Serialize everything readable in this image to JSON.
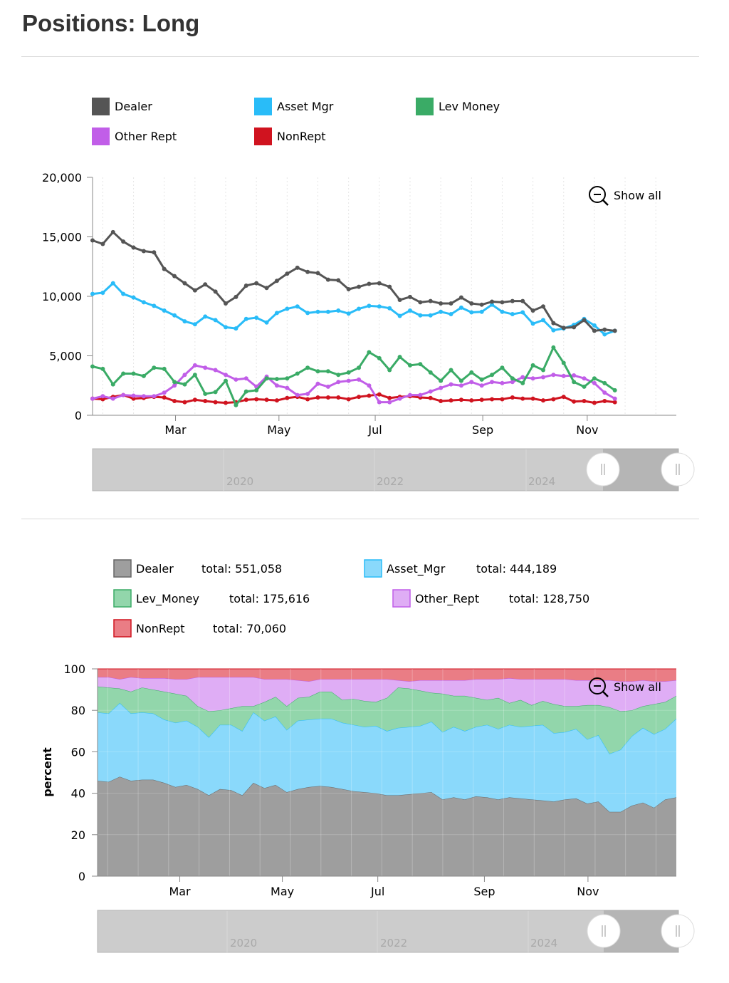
{
  "page": {
    "title": "Positions: Long"
  },
  "colors": {
    "Dealer": "#555555",
    "Asset_Mgr": "#29bcf8",
    "Lev_Money": "#3aab66",
    "Other_Rept": "#c15ee8",
    "NonRept": "#d0131f"
  },
  "chart_data": [
    {
      "type": "line",
      "title": "",
      "xlabel": "",
      "ylabel": "",
      "ylim": [
        0,
        20000
      ],
      "yticks": [
        0,
        5000,
        10000,
        15000,
        20000
      ],
      "ytick_labels": [
        "0",
        "5,000",
        "10,000",
        "15,000",
        "20,000"
      ],
      "x_axis_labels": [
        "Mar",
        "May",
        "Jul",
        "Sep",
        "Nov"
      ],
      "x_label_weeks": [
        8.1,
        18.2,
        27.6,
        38.1,
        48.3
      ],
      "n_weeks": 58,
      "zoom_label": "Show all",
      "navigator_labels": [
        "2020",
        "2022",
        "2024"
      ],
      "legend": [
        "Dealer",
        "Asset Mgr",
        "Lev Money",
        "Other Rept",
        "NonRept"
      ],
      "series": [
        {
          "name": "Dealer",
          "color": "#555555",
          "values": [
            14700,
            14400,
            15400,
            14600,
            14100,
            13800,
            13700,
            12300,
            11700,
            11100,
            10500,
            11000,
            10400,
            9400,
            9950,
            10900,
            11100,
            10700,
            11300,
            11900,
            12400,
            12050,
            11950,
            11400,
            11350,
            10600,
            10800,
            11050,
            11100,
            10800,
            9700,
            9950,
            9500,
            9600,
            9400,
            9400,
            9900,
            9400,
            9300,
            9550,
            9500,
            9600,
            9600,
            8800,
            9150,
            7750,
            7350,
            7400,
            8000,
            7100,
            7200,
            7100
          ]
        },
        {
          "name": "Asset Mgr",
          "color": "#29bcf8",
          "values": [
            10200,
            10300,
            11100,
            10200,
            9900,
            9500,
            9200,
            8800,
            8400,
            7900,
            7650,
            8300,
            8000,
            7400,
            7300,
            8100,
            8200,
            7800,
            8600,
            8950,
            9150,
            8600,
            8700,
            8700,
            8800,
            8550,
            8950,
            9200,
            9150,
            9000,
            8350,
            8800,
            8400,
            8400,
            8700,
            8500,
            9050,
            8650,
            8700,
            9300,
            8700,
            8500,
            8650,
            7700,
            8000,
            7150,
            7300,
            7600,
            8100,
            7550,
            6800,
            7100
          ]
        },
        {
          "name": "Lev Money",
          "color": "#3aab66",
          "values": [
            4100,
            3900,
            2600,
            3500,
            3500,
            3300,
            4000,
            3900,
            2800,
            2600,
            3400,
            1800,
            1950,
            2900,
            850,
            2000,
            2100,
            3100,
            3050,
            3100,
            3500,
            4000,
            3700,
            3700,
            3400,
            3600,
            4000,
            5300,
            4800,
            3800,
            4900,
            4200,
            4300,
            3600,
            2900,
            3800,
            2900,
            3600,
            3000,
            3400,
            4000,
            3100,
            2700,
            4200,
            3800,
            5700,
            4400,
            2800,
            2400,
            3100,
            2700,
            2100
          ]
        },
        {
          "name": "Other Rept",
          "color": "#c15ee8",
          "values": [
            1400,
            1600,
            1400,
            1700,
            1650,
            1600,
            1600,
            1900,
            2500,
            3400,
            4200,
            4000,
            3800,
            3400,
            3000,
            3100,
            2400,
            3250,
            2500,
            2300,
            1700,
            1800,
            2650,
            2400,
            2800,
            2900,
            3000,
            2500,
            1100,
            1100,
            1400,
            1700,
            1700,
            2000,
            2300,
            2600,
            2500,
            2800,
            2500,
            2800,
            2700,
            2800,
            3200,
            3100,
            3200,
            3400,
            3300,
            3350,
            3100,
            2700,
            1900,
            1400
          ]
        },
        {
          "name": "NonRept",
          "color": "#d0131f",
          "values": [
            1400,
            1350,
            1550,
            1700,
            1400,
            1450,
            1550,
            1500,
            1200,
            1100,
            1300,
            1200,
            1100,
            1050,
            1100,
            1300,
            1350,
            1300,
            1250,
            1450,
            1550,
            1350,
            1500,
            1500,
            1500,
            1350,
            1550,
            1650,
            1750,
            1450,
            1550,
            1600,
            1500,
            1450,
            1200,
            1250,
            1300,
            1250,
            1300,
            1350,
            1350,
            1500,
            1400,
            1400,
            1250,
            1350,
            1550,
            1150,
            1200,
            1050,
            1200,
            1100
          ]
        }
      ]
    },
    {
      "type": "area",
      "stacked_percent": true,
      "title": "",
      "xlabel": "",
      "ylabel": "percent",
      "ylim": [
        0,
        100
      ],
      "yticks": [
        0,
        20,
        40,
        60,
        80,
        100
      ],
      "ytick_labels": [
        "0",
        "20",
        "40",
        "60",
        "80",
        "100"
      ],
      "x_axis_labels": [
        "Mar",
        "May",
        "Jul",
        "Sep",
        "Nov"
      ],
      "x_label_weeks": [
        8.1,
        18.2,
        27.6,
        38.1,
        48.3
      ],
      "n_weeks": 58,
      "zoom_label": "Show all",
      "navigator_labels": [
        "2020",
        "2022",
        "2024"
      ],
      "legend": [
        {
          "name": "Dealer",
          "total_label": "total:",
          "total": "551,058",
          "color": "#9e9e9e",
          "border": "#666666"
        },
        {
          "name": "Asset_Mgr",
          "total_label": "total:",
          "total": "444,189",
          "color": "#8ad9fb",
          "border": "#29bcf8"
        },
        {
          "name": "Lev_Money",
          "total_label": "total:",
          "total": "175,616",
          "color": "#92d6ab",
          "border": "#3aab66"
        },
        {
          "name": "Other_Rept",
          "total_label": "total:",
          "total": "128,750",
          "color": "#dfadf5",
          "border": "#c15ee8"
        },
        {
          "name": "NonRept",
          "total_label": "total:",
          "total": "70,060",
          "color": "#ea7d85",
          "border": "#d0131f"
        }
      ],
      "boundaries": [
        {
          "name": "Dealer",
          "color": "#9e9e9e",
          "line": "#666666",
          "values": [
            46,
            45.5,
            48,
            46,
            46.5,
            46.5,
            45,
            43,
            44,
            42,
            39,
            42,
            41.5,
            39,
            45,
            42.5,
            44,
            40.5,
            42,
            43,
            43.5,
            43,
            42,
            41,
            40.5,
            40,
            39,
            39,
            39.5,
            40,
            40.5,
            37,
            38,
            37,
            38.5,
            38,
            37,
            38,
            37.5,
            37,
            36.5,
            36,
            37,
            37.5,
            35,
            36,
            31,
            31,
            34,
            35.5,
            33,
            37,
            38
          ]
        },
        {
          "name": "Asset_Mgr",
          "color": "#8ad9fb",
          "line": "#29bcf8",
          "values": [
            79,
            78.5,
            83.5,
            78.5,
            79,
            78.5,
            75.5,
            74,
            75,
            72,
            67,
            73,
            73,
            70,
            79,
            75,
            77,
            70.5,
            75,
            75.5,
            76,
            76,
            74,
            73,
            72,
            72.5,
            70,
            71.5,
            72,
            72.5,
            74.5,
            69.5,
            72,
            70,
            72,
            73,
            71,
            73,
            72,
            72.5,
            73,
            69,
            69.5,
            71,
            66,
            68,
            59,
            61,
            67.5,
            71.5,
            68.5,
            71,
            76
          ]
        },
        {
          "name": "Lev_Money",
          "color": "#92d6ab",
          "line": "#3aab66",
          "values": [
            91.5,
            91,
            90.5,
            89,
            91,
            90,
            89,
            88,
            87,
            82,
            79.5,
            80,
            81,
            82,
            82,
            84,
            86.5,
            82,
            86,
            86.5,
            89,
            89,
            85,
            85.5,
            84.5,
            84,
            86,
            91,
            90.5,
            89.5,
            88.5,
            88,
            87,
            87,
            86,
            85,
            86,
            83.5,
            85,
            82.5,
            84.5,
            83,
            82,
            82,
            82.5,
            82.5,
            81.5,
            79.5,
            80,
            82,
            83,
            84,
            87
          ]
        },
        {
          "name": "Other_Rept",
          "color": "#dfadf5",
          "line": "#c15ee8",
          "values": [
            96,
            96,
            95,
            96,
            95.5,
            95.5,
            95.5,
            95,
            95,
            96,
            96,
            96,
            96,
            96,
            96,
            95,
            95,
            95,
            94.5,
            94,
            95,
            95,
            95,
            95,
            95,
            95,
            95,
            94.5,
            94,
            94.5,
            94.5,
            94.5,
            94.5,
            94.5,
            95,
            95,
            95,
            95.5,
            95,
            95,
            95,
            95,
            95,
            94.5,
            94.5,
            94.5,
            94.5,
            94,
            94,
            94.5,
            94,
            94,
            94.5
          ]
        },
        {
          "name": "NonRept",
          "color": "#ea7d85",
          "line": "#d0131f",
          "values": [
            100,
            100,
            100,
            100,
            100,
            100,
            100,
            100,
            100,
            100,
            100,
            100,
            100,
            100,
            100,
            100,
            100,
            100,
            100,
            100,
            100,
            100,
            100,
            100,
            100,
            100,
            100,
            100,
            100,
            100,
            100,
            100,
            100,
            100,
            100,
            100,
            100,
            100,
            100,
            100,
            100,
            100,
            100,
            100,
            100,
            100,
            100,
            100,
            100,
            100,
            100,
            100,
            100
          ]
        }
      ]
    }
  ]
}
